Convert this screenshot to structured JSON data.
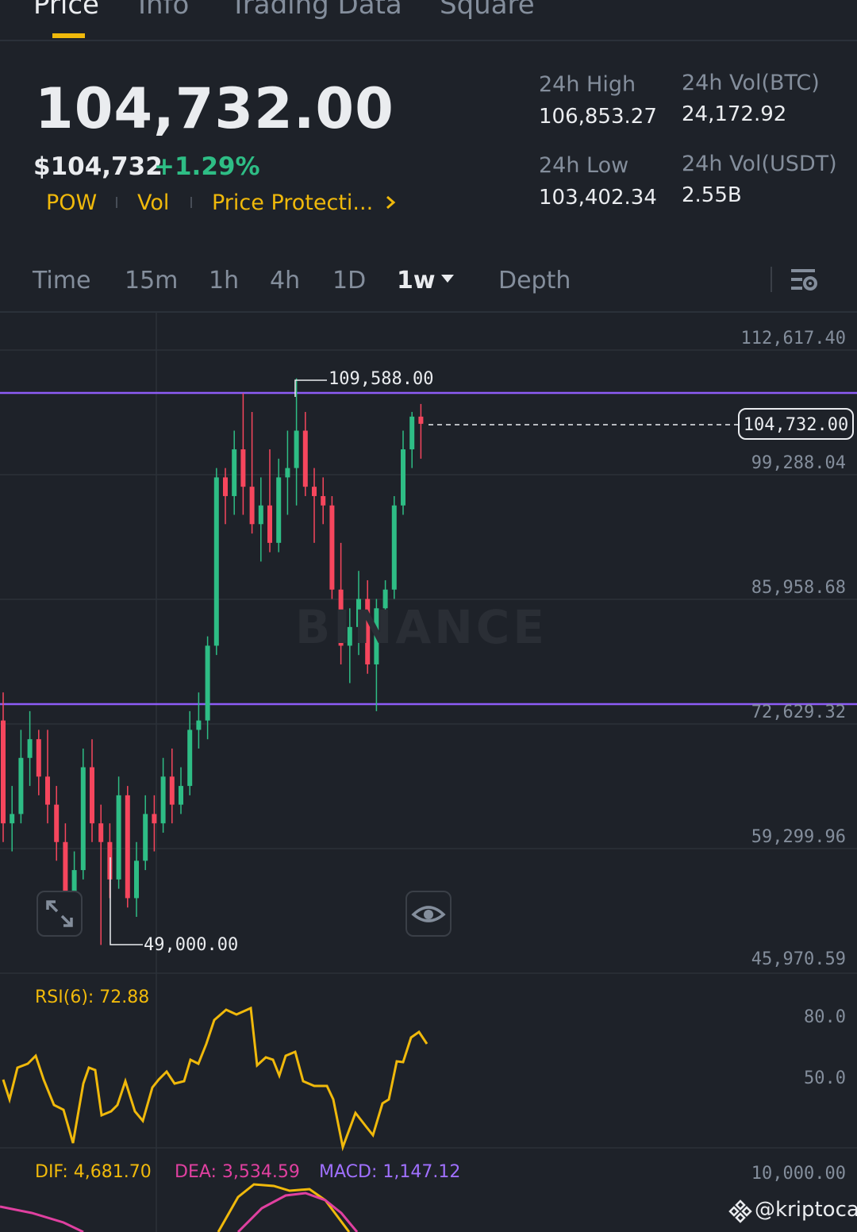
{
  "tabs": [
    "Price",
    "Info",
    "Trading Data",
    "Square"
  ],
  "active_tab": "Price",
  "price": {
    "last": "104,732.00",
    "usd": "$104,732",
    "change": "+1.29%",
    "tags": [
      "POW",
      "Vol",
      "Price Protecti..."
    ],
    "more_icon": "chevron-right-icon"
  },
  "stats": {
    "high_label": "24h High",
    "high_value": "106,853.27",
    "low_label": "24h Low",
    "low_value": "103,402.34",
    "vol_btc_label": "24h Vol(BTC)",
    "vol_btc_value": "24,172.92",
    "vol_usdt_label": "24h Vol(USDT)",
    "vol_usdt_value": "2.55B"
  },
  "timeframes": [
    "Time",
    "15m",
    "1h",
    "4h",
    "1D",
    "1w",
    "Depth"
  ],
  "active_timeframe": "1w",
  "chart_settings_icon": "chart-settings-icon",
  "chart": {
    "watermark": "BINANCE",
    "price_axis": [
      "112,617.40",
      "99,288.04",
      "85,958.68",
      "72,629.32",
      "59,299.96",
      "45,970.59"
    ],
    "max_label": "109,588.00",
    "min_label": "49,000.00",
    "current_price_label": "104,732.00",
    "expand_icon": "expand-icon",
    "eye_icon": "eye-icon",
    "colors": {
      "up": "#2ebd85",
      "down": "#f6465d",
      "line": "#8d5cf6"
    }
  },
  "rsi": {
    "label": "RSI(6): 72.88",
    "axis": [
      "80.0",
      "50.0"
    ],
    "color": "#f0b90b"
  },
  "macd": {
    "dif": "DIF: 4,681.70",
    "dea": "DEA: 3,534.59",
    "macd": "MACD: 1,147.12",
    "axis": "10,000.00",
    "colors": {
      "dif": "#f0b90b",
      "dea": "#e040a0",
      "macd": "#a070ff"
    }
  },
  "watermark_footer": "@kriptoca",
  "chart_data": {
    "type": "candlestick",
    "series": [
      {
        "o": 73000,
        "h": 76000,
        "l": 60000,
        "c": 62000
      },
      {
        "o": 62000,
        "h": 66000,
        "l": 59000,
        "c": 63000
      },
      {
        "o": 63000,
        "h": 72000,
        "l": 62000,
        "c": 69000
      },
      {
        "o": 69000,
        "h": 74000,
        "l": 66000,
        "c": 71000
      },
      {
        "o": 71000,
        "h": 72000,
        "l": 65000,
        "c": 67000
      },
      {
        "o": 67000,
        "h": 72000,
        "l": 62000,
        "c": 64000
      },
      {
        "o": 64000,
        "h": 66000,
        "l": 58000,
        "c": 60000
      },
      {
        "o": 60000,
        "h": 62000,
        "l": 52000,
        "c": 53000
      },
      {
        "o": 53000,
        "h": 59000,
        "l": 51000,
        "c": 57000
      },
      {
        "o": 57000,
        "h": 70000,
        "l": 56000,
        "c": 68000
      },
      {
        "o": 68000,
        "h": 71000,
        "l": 60000,
        "c": 62000
      },
      {
        "o": 62000,
        "h": 64000,
        "l": 49000,
        "c": 60000
      },
      {
        "o": 60000,
        "h": 62000,
        "l": 54000,
        "c": 56000
      },
      {
        "o": 56000,
        "h": 67000,
        "l": 55000,
        "c": 65000
      },
      {
        "o": 65000,
        "h": 66000,
        "l": 53000,
        "c": 54000
      },
      {
        "o": 54000,
        "h": 60000,
        "l": 52000,
        "c": 58000
      },
      {
        "o": 58000,
        "h": 65000,
        "l": 57000,
        "c": 63000
      },
      {
        "o": 63000,
        "h": 65000,
        "l": 59000,
        "c": 62000
      },
      {
        "o": 62000,
        "h": 69000,
        "l": 61000,
        "c": 67000
      },
      {
        "o": 67000,
        "h": 70000,
        "l": 62000,
        "c": 64000
      },
      {
        "o": 64000,
        "h": 68000,
        "l": 63000,
        "c": 66000
      },
      {
        "o": 66000,
        "h": 74000,
        "l": 65000,
        "c": 72000
      },
      {
        "o": 72000,
        "h": 76000,
        "l": 70000,
        "c": 73000
      },
      {
        "o": 73000,
        "h": 82000,
        "l": 71000,
        "c": 81000
      },
      {
        "o": 81000,
        "h": 100000,
        "l": 80000,
        "c": 99000
      },
      {
        "o": 99000,
        "h": 100000,
        "l": 94000,
        "c": 97000
      },
      {
        "o": 97000,
        "h": 104000,
        "l": 95000,
        "c": 102000
      },
      {
        "o": 102000,
        "h": 108000,
        "l": 95000,
        "c": 98000
      },
      {
        "o": 98000,
        "h": 106000,
        "l": 93000,
        "c": 94000
      },
      {
        "o": 94000,
        "h": 99000,
        "l": 90000,
        "c": 96000
      },
      {
        "o": 96000,
        "h": 102000,
        "l": 91000,
        "c": 92000
      },
      {
        "o": 92000,
        "h": 101000,
        "l": 91000,
        "c": 99000
      },
      {
        "o": 99000,
        "h": 104000,
        "l": 95000,
        "c": 100000
      },
      {
        "o": 100000,
        "h": 109588,
        "l": 96000,
        "c": 104000
      },
      {
        "o": 104000,
        "h": 106000,
        "l": 97000,
        "c": 98000
      },
      {
        "o": 98000,
        "h": 100000,
        "l": 92000,
        "c": 97000
      },
      {
        "o": 97000,
        "h": 99000,
        "l": 94000,
        "c": 96000
      },
      {
        "o": 96000,
        "h": 97000,
        "l": 86000,
        "c": 87000
      },
      {
        "o": 87000,
        "h": 92000,
        "l": 79000,
        "c": 81000
      },
      {
        "o": 81000,
        "h": 85000,
        "l": 77000,
        "c": 83000
      },
      {
        "o": 83000,
        "h": 89000,
        "l": 80000,
        "c": 86000
      },
      {
        "o": 86000,
        "h": 88000,
        "l": 78000,
        "c": 79000
      },
      {
        "o": 79000,
        "h": 86000,
        "l": 74000,
        "c": 85000
      },
      {
        "o": 85000,
        "h": 88000,
        "l": 83000,
        "c": 87000
      },
      {
        "o": 87000,
        "h": 97000,
        "l": 86000,
        "c": 96000
      },
      {
        "o": 96000,
        "h": 104000,
        "l": 95000,
        "c": 102000
      },
      {
        "o": 102000,
        "h": 106000,
        "l": 100000,
        "c": 105500
      },
      {
        "o": 105500,
        "h": 106853,
        "l": 101000,
        "c": 104732
      }
    ]
  }
}
